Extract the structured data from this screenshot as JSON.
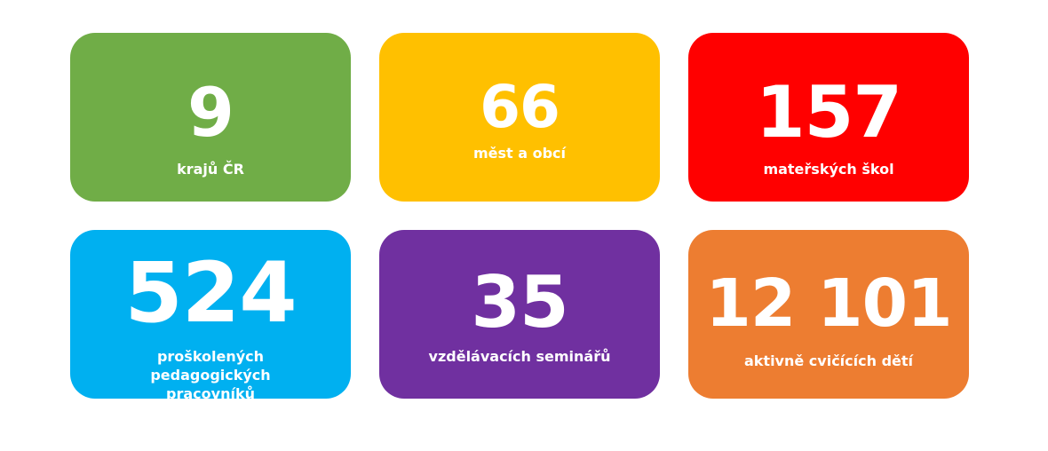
{
  "cards": [
    {
      "value": "9",
      "label": "krajů ČR",
      "color": "#70AD47"
    },
    {
      "value": "66",
      "label": "měst a obcí",
      "color": "#FFC000"
    },
    {
      "value": "157",
      "label": "mateřských škol",
      "color": "#FF0000"
    },
    {
      "value": "524",
      "label": "proškolených pedagogických pracovníků",
      "color": "#00B0F0"
    },
    {
      "value": "35",
      "label": "vzdělávacích seminářů",
      "color": "#7030A0"
    },
    {
      "value": "12 101",
      "label": "aktivně cvičících dětí",
      "color": "#ED7D31"
    }
  ]
}
